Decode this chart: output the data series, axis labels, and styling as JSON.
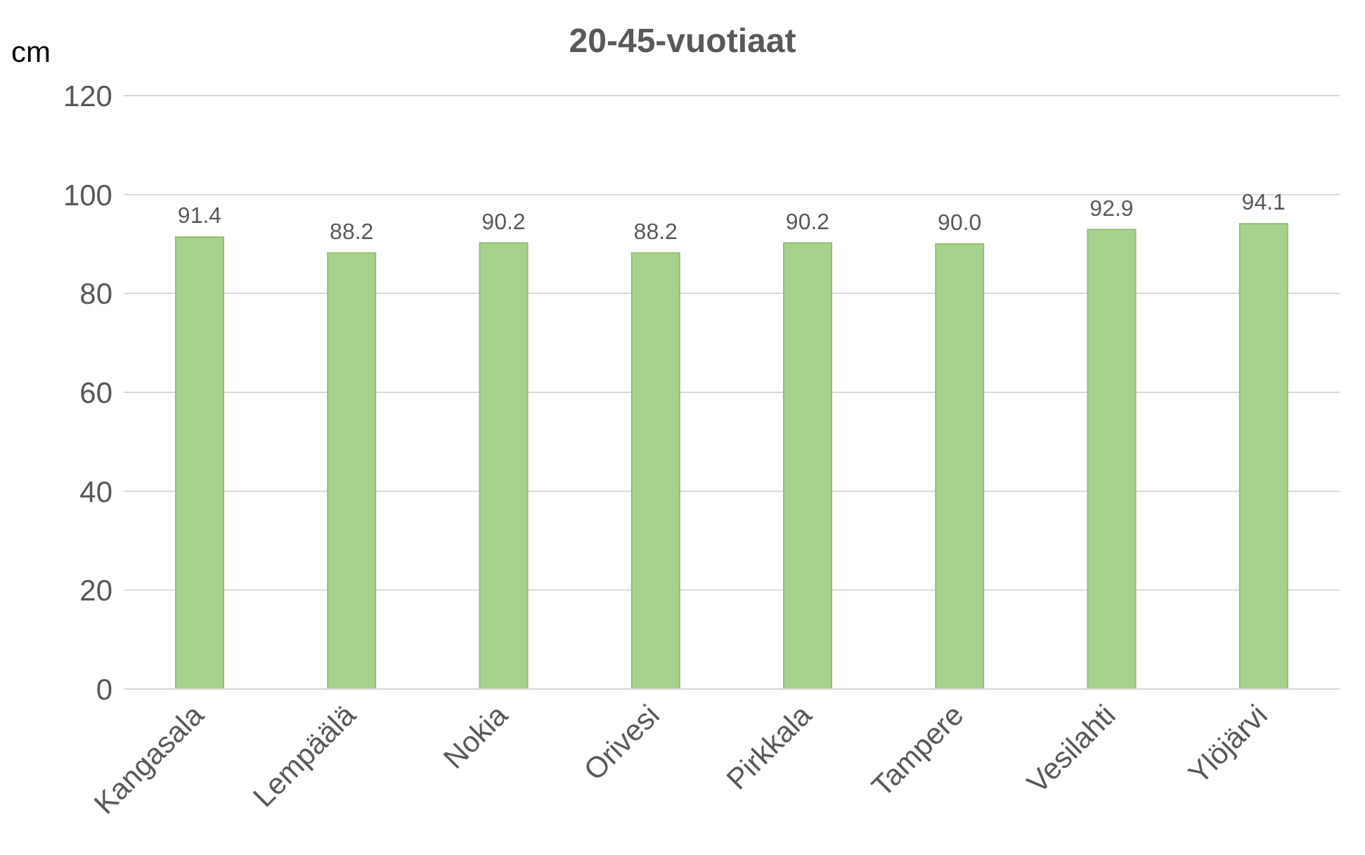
{
  "chart_data": {
    "type": "bar",
    "title": "20-45-vuotiaat",
    "ylabel": "cm",
    "categories": [
      "Kangasala",
      "Lempäälä",
      "Nokia",
      "Orivesi",
      "Pirkkala",
      "Tampere",
      "Vesilahti",
      "Ylöjärvi"
    ],
    "values": [
      91.4,
      88.2,
      90.2,
      88.2,
      90.2,
      90.0,
      92.9,
      94.1
    ],
    "value_labels": [
      "91.4",
      "88.2",
      "90.2",
      "88.2",
      "90.2",
      "90.0",
      "92.9",
      "94.1"
    ],
    "color": "#a9d18e",
    "ylim": [
      0,
      120
    ],
    "yticks": [
      0,
      20,
      40,
      60,
      80,
      100,
      120
    ],
    "grid": "y",
    "legend": false
  }
}
